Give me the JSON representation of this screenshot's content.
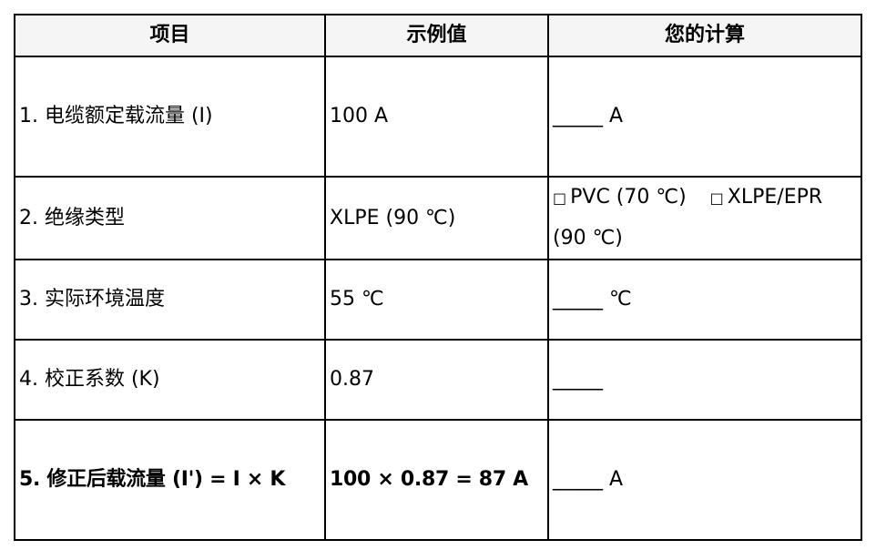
{
  "headers": [
    "项目",
    "示例值",
    "您的计算"
  ],
  "rows": [
    {
      "item": "1. 电缆额定载流量 (I)",
      "example": "100 A",
      "calc": "_____ A"
    },
    {
      "item": "2. 绝缘类型",
      "example": "XLPE (90 ℃)",
      "options": [
        {
          "box": "□",
          "label": "PVC (70 ℃)"
        },
        {
          "box": "□",
          "label": "XLPE/EPR (90 ℃)"
        }
      ]
    },
    {
      "item": "3. 实际环境温度",
      "example": "55 ℃",
      "calc": "_____ ℃"
    },
    {
      "item": "4. 校正系数 (K)",
      "example": "0.87",
      "calc": "_____"
    },
    {
      "item": "5. 修正后载流量 (I') = I × K",
      "example": "100 × 0.87 = 87 A",
      "calc": "_____ A"
    }
  ]
}
